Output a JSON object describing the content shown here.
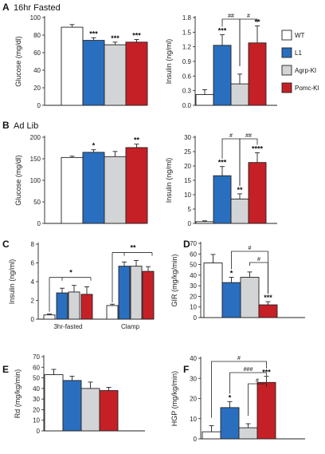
{
  "colors": {
    "WT": "#ffffff",
    "L1": "#2a6fbf",
    "Agrp-KI": "#d3d4d6",
    "Pomc-KI": "#c62027"
  },
  "legend": [
    "WT",
    "L1",
    "Agrp-KI",
    "Pomc-KI"
  ],
  "sections": [
    {
      "label": "A",
      "title": "16hr Fasted"
    },
    {
      "label": "B",
      "title": "Ad Lib"
    }
  ],
  "chart_data": [
    {
      "id": "A1",
      "panel_label": "A",
      "type": "bar",
      "ylabel": "Glucose (mg/dl)",
      "ylim": [
        0,
        100
      ],
      "yticks": [
        "0",
        "20",
        "40",
        "60",
        "80",
        "100"
      ],
      "series": [
        {
          "name": "WT",
          "value": 89,
          "error": 3
        },
        {
          "name": "L1",
          "value": 74,
          "error": 3
        },
        {
          "name": "Agrp-KI",
          "value": 69,
          "error": 3
        },
        {
          "name": "Pomc-KI",
          "value": 72,
          "error": 3
        }
      ],
      "stars": [
        "",
        "***",
        "***",
        "***"
      ]
    },
    {
      "id": "A2",
      "type": "bar",
      "ylabel": "Insulin (ng/ml)",
      "ylim": [
        0,
        1.8
      ],
      "yticks": [
        "0.0",
        "0.3",
        "0.6",
        "0.9",
        "1.2",
        "1.5",
        "1.8"
      ],
      "series": [
        {
          "name": "WT",
          "value": 0.22,
          "error": 0.1
        },
        {
          "name": "L1",
          "value": 1.23,
          "error": 0.22
        },
        {
          "name": "Agrp-KI",
          "value": 0.44,
          "error": 0.2
        },
        {
          "name": "Pomc-KI",
          "value": 1.28,
          "error": 0.35
        }
      ],
      "stars": [
        "",
        "***",
        "",
        "**"
      ],
      "brackets": [
        {
          "from": 1,
          "to": 2,
          "label": "##"
        },
        {
          "from": 2,
          "to": 3,
          "label": "#"
        }
      ]
    },
    {
      "id": "B1",
      "panel_label": "B",
      "type": "bar",
      "ylabel": "Glucose (mg/dl)",
      "ylim": [
        0,
        200
      ],
      "yticks": [
        "0",
        "50",
        "100",
        "150",
        "200"
      ],
      "series": [
        {
          "name": "WT",
          "value": 153,
          "error": 3
        },
        {
          "name": "L1",
          "value": 165,
          "error": 6
        },
        {
          "name": "Agrp-KI",
          "value": 155,
          "error": 12
        },
        {
          "name": "Pomc-KI",
          "value": 176,
          "error": 8
        }
      ],
      "stars": [
        "",
        "*",
        "",
        "**"
      ]
    },
    {
      "id": "B2",
      "type": "bar",
      "ylabel": "Insulin (ng/ml)",
      "ylim": [
        0,
        30
      ],
      "yticks": [
        "0",
        "5",
        "10",
        "15",
        "20",
        "25",
        "30"
      ],
      "series": [
        {
          "name": "WT",
          "value": 0.6,
          "error": 0.3
        },
        {
          "name": "L1",
          "value": 16.6,
          "error": 3.2
        },
        {
          "name": "Agrp-KI",
          "value": 8.5,
          "error": 1.8
        },
        {
          "name": "Pomc-KI",
          "value": 21.2,
          "error": 3.4
        }
      ],
      "stars": [
        "",
        "***",
        "**",
        "****"
      ],
      "brackets": [
        {
          "from": 1,
          "to": 2,
          "label": "#"
        },
        {
          "from": 2,
          "to": 3,
          "label": "##"
        }
      ]
    },
    {
      "id": "C",
      "panel_label": "C",
      "type": "bar",
      "ylabel": "Insulin (ng/ml)",
      "ylim": [
        0,
        8
      ],
      "yticks": [
        "0",
        "2",
        "4",
        "6",
        "8"
      ],
      "categories": [
        "3hr-fasted",
        "Clamp"
      ],
      "series": [
        {
          "name": "WT",
          "values": [
            0.45,
            1.45
          ],
          "errors": [
            0.1,
            0.15
          ]
        },
        {
          "name": "L1",
          "values": [
            2.8,
            5.65
          ],
          "errors": [
            0.5,
            0.45
          ]
        },
        {
          "name": "Agrp-KI",
          "values": [
            2.9,
            5.65
          ],
          "errors": [
            0.7,
            0.6
          ]
        },
        {
          "name": "Pomc-KI",
          "values": [
            2.65,
            5.1
          ],
          "errors": [
            0.8,
            0.5
          ]
        }
      ],
      "group_sig": [
        "*",
        "**"
      ]
    },
    {
      "id": "D",
      "panel_label": "D",
      "type": "bar",
      "ylabel": "GIR (mg/kg/min)",
      "ylim": [
        0,
        70
      ],
      "yticks": [
        "0",
        "10",
        "20",
        "30",
        "40",
        "50",
        "60",
        "70"
      ],
      "series": [
        {
          "name": "WT",
          "value": 51.5,
          "error": 8
        },
        {
          "name": "L1",
          "value": 33,
          "error": 5
        },
        {
          "name": "Agrp-KI",
          "value": 38,
          "error": 5
        },
        {
          "name": "Pomc-KI",
          "value": 12,
          "error": 3
        }
      ],
      "stars": [
        "",
        "*",
        "",
        "***"
      ],
      "brackets": [
        {
          "from": 1,
          "to": 3,
          "label": "#"
        },
        {
          "from": 2,
          "to": 3,
          "label": "#"
        }
      ]
    },
    {
      "id": "E",
      "panel_label": "E",
      "type": "bar",
      "ylabel": "Rd (mg/kg/min)",
      "ylim": [
        0,
        70
      ],
      "yticks": [
        "0",
        "10",
        "20",
        "30",
        "40",
        "50",
        "60",
        "70"
      ],
      "series": [
        {
          "name": "WT",
          "value": 53,
          "error": 5
        },
        {
          "name": "L1",
          "value": 47.5,
          "error": 4
        },
        {
          "name": "Agrp-KI",
          "value": 40,
          "error": 6
        },
        {
          "name": "Pomc-KI",
          "value": 38,
          "error": 3
        }
      ],
      "stars": [
        "",
        "",
        "",
        ""
      ]
    },
    {
      "id": "F",
      "panel_label": "F",
      "type": "bar",
      "ylabel": "HGP (mg/kg/min)",
      "ylim": [
        0,
        40
      ],
      "yticks": [
        "0",
        "10",
        "20",
        "30",
        "40"
      ],
      "series": [
        {
          "name": "WT",
          "value": 3.5,
          "error": 3
        },
        {
          "name": "L1",
          "value": 15.5,
          "error": 3
        },
        {
          "name": "Agrp-KI",
          "value": 5.5,
          "error": 2
        },
        {
          "name": "Pomc-KI",
          "value": 28,
          "error": 3
        }
      ],
      "stars": [
        "",
        "*",
        "",
        "***"
      ],
      "brackets": [
        {
          "from": 0,
          "to": 3,
          "label": "#"
        },
        {
          "from": 1,
          "to": 3,
          "label": "###"
        },
        {
          "from": 2,
          "to": 3,
          "label": "#"
        }
      ]
    }
  ]
}
